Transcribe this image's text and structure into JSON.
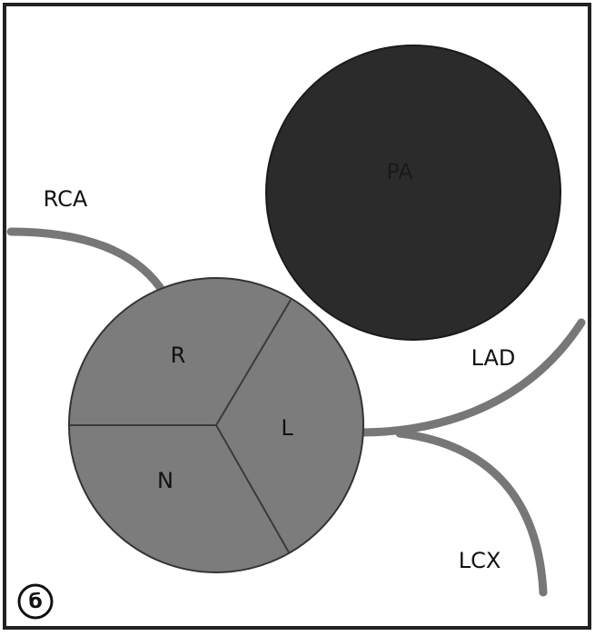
{
  "labels": {
    "rca": "RCA",
    "lad": "LAD",
    "lcx": "LCX",
    "pa": "PA",
    "r": "R",
    "l": "L",
    "n": "N"
  },
  "panel": "б"
}
